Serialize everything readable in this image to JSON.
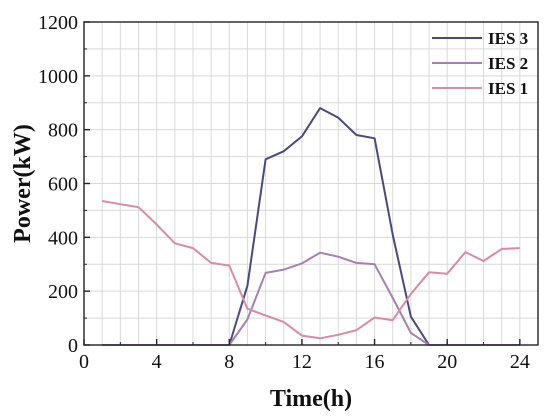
{
  "chart_data": {
    "type": "line",
    "xlabel": "Time(h)",
    "ylabel": "Power(kW)",
    "xlim": [
      0,
      25
    ],
    "ylim": [
      0,
      1200
    ],
    "xticks": [
      0,
      4,
      8,
      12,
      16,
      20,
      24
    ],
    "yticks": [
      0,
      200,
      400,
      600,
      800,
      1000,
      1200
    ],
    "grid": true,
    "legend_position": "top-right",
    "series": [
      {
        "name": "IES 3",
        "color": "#4b4a7d",
        "x": [
          1,
          2,
          3,
          4,
          5,
          6,
          7,
          8,
          9,
          10,
          11,
          12,
          13,
          14,
          15,
          16,
          17,
          18,
          19,
          20,
          21,
          22,
          23,
          24
        ],
        "values": [
          0,
          0,
          0,
          0,
          0,
          0,
          0,
          0,
          220,
          690,
          720,
          775,
          880,
          845,
          780,
          768,
          410,
          105,
          0,
          0,
          0,
          0,
          0,
          0
        ]
      },
      {
        "name": "IES 2",
        "color": "#a680b2",
        "x": [
          1,
          2,
          3,
          4,
          5,
          6,
          7,
          8,
          9,
          10,
          11,
          12,
          13,
          14,
          15,
          16,
          17,
          18,
          19,
          20,
          21,
          22,
          23,
          24
        ],
        "values": [
          0,
          0,
          0,
          0,
          0,
          0,
          0,
          0,
          95,
          268,
          280,
          303,
          343,
          328,
          305,
          300,
          175,
          45,
          0,
          0,
          0,
          0,
          0,
          0
        ]
      },
      {
        "name": "IES 1",
        "color": "#d98aa8",
        "x": [
          1,
          2,
          3,
          4,
          5,
          6,
          7,
          8,
          9,
          10,
          11,
          12,
          13,
          14,
          15,
          16,
          17,
          18,
          19,
          20,
          21,
          22,
          23,
          24
        ],
        "values": [
          535,
          523,
          512,
          448,
          378,
          360,
          305,
          295,
          135,
          110,
          85,
          35,
          25,
          38,
          55,
          102,
          92,
          190,
          270,
          265,
          345,
          312,
          357,
          360
        ]
      }
    ]
  }
}
